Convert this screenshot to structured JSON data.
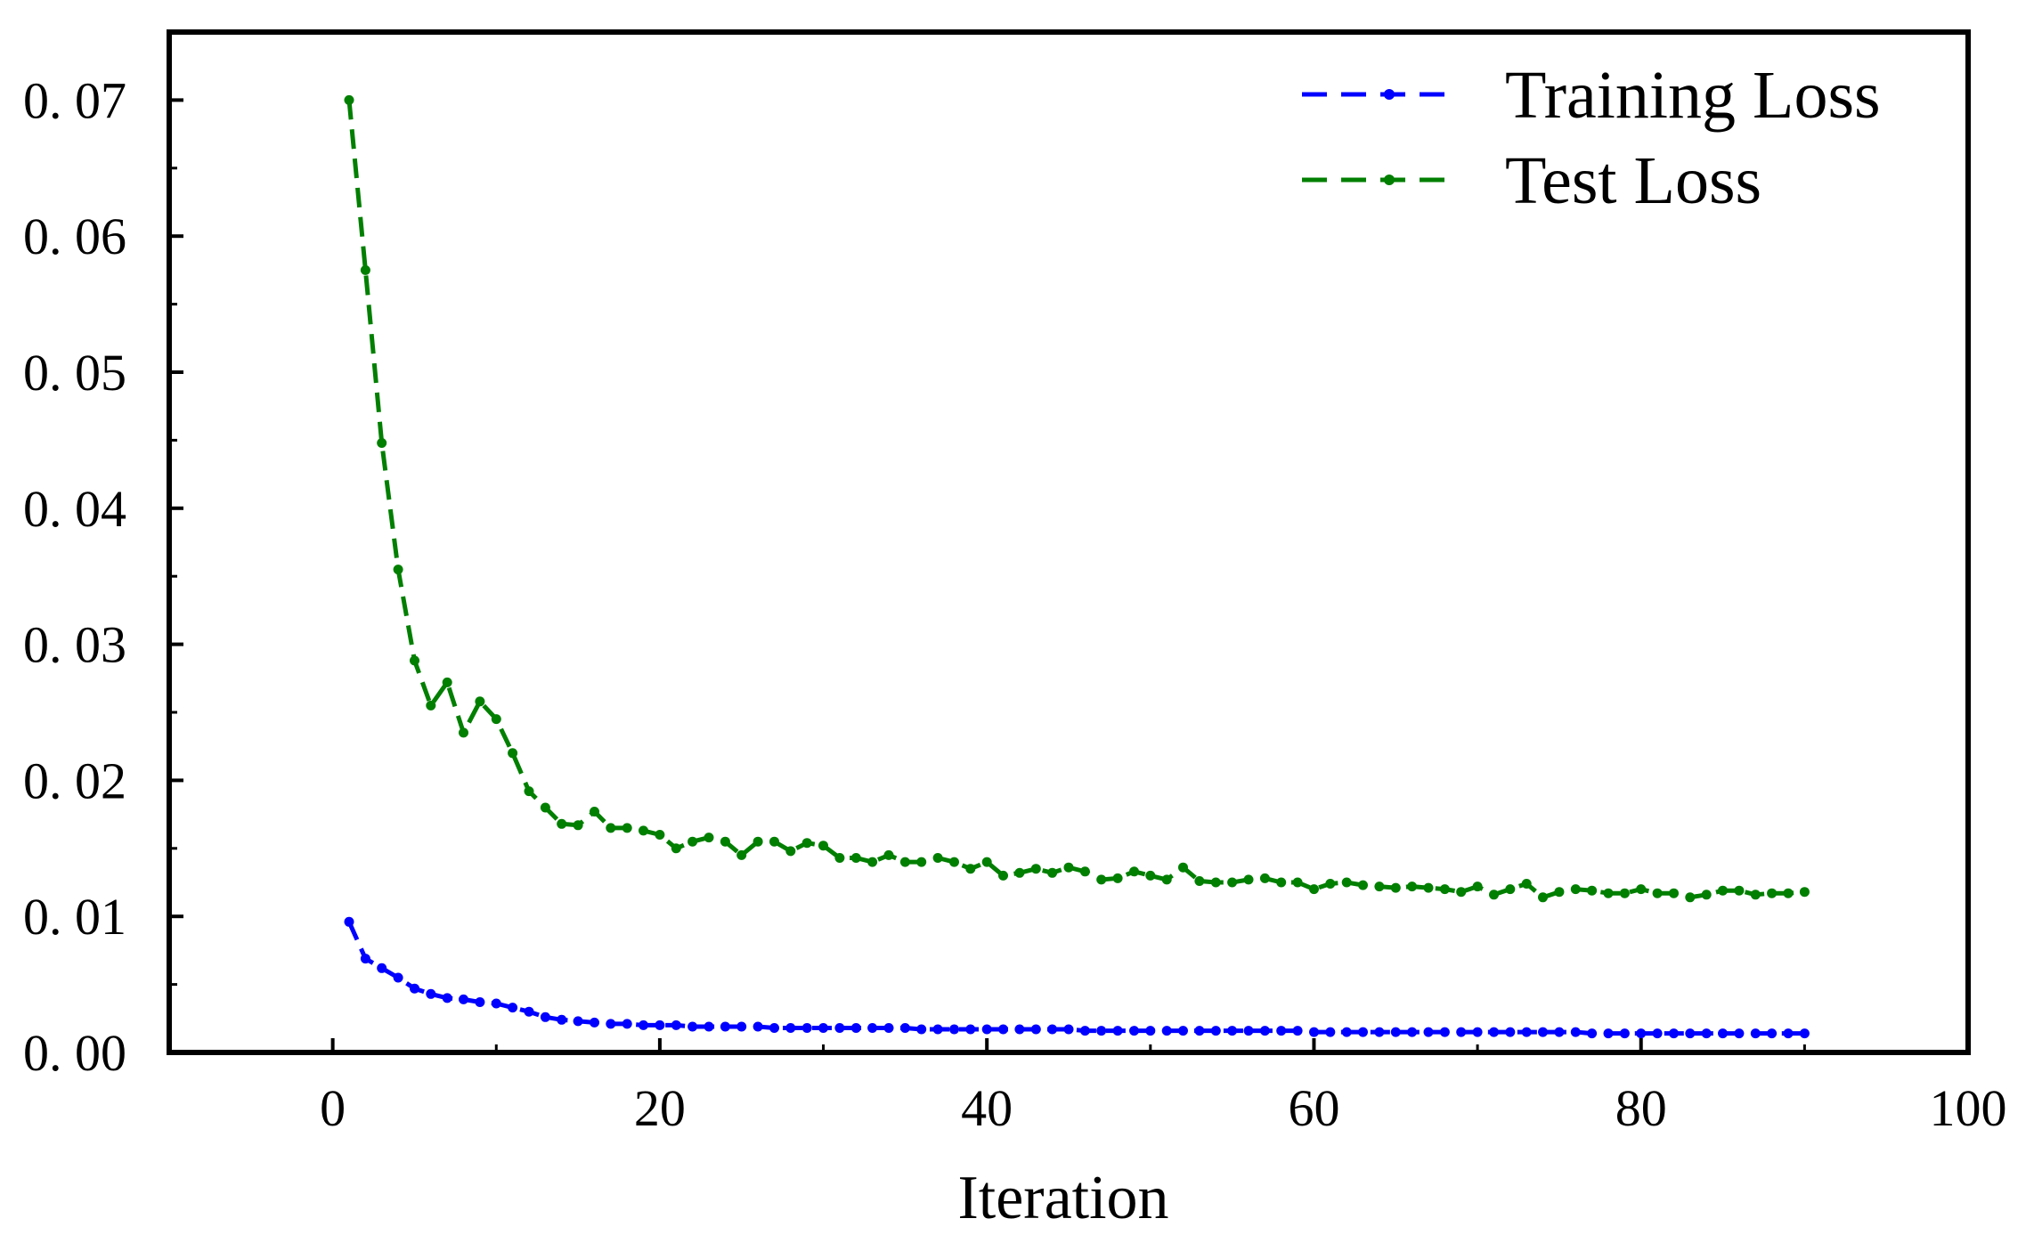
{
  "chart_data": {
    "type": "line",
    "title": "",
    "xlabel": "Iteration",
    "ylabel": "",
    "xlim": [
      -10,
      100
    ],
    "ylim": [
      0,
      0.075
    ],
    "xticks": [
      0,
      20,
      40,
      60,
      80,
      100
    ],
    "xtick_labels": [
      "0",
      "20",
      "40",
      "60",
      "80",
      "100"
    ],
    "yticks": [
      0,
      0.01,
      0.02,
      0.03,
      0.04,
      0.05,
      0.06,
      0.07
    ],
    "ytick_labels": [
      "0. 00",
      "0. 01",
      "0. 02",
      "0. 03",
      "0. 04",
      "0. 05",
      "0. 06",
      "0. 07"
    ],
    "grid": false,
    "legend_position": "top-right",
    "series": [
      {
        "name": "Training Loss",
        "color": "#0000ff",
        "line_style": "dashed",
        "marker": "dot",
        "x": [
          1,
          2,
          3,
          4,
          5,
          6,
          7,
          8,
          9,
          10,
          11,
          12,
          13,
          14,
          15,
          16,
          17,
          18,
          19,
          20,
          21,
          22,
          23,
          24,
          25,
          26,
          27,
          28,
          29,
          30,
          31,
          32,
          33,
          34,
          35,
          36,
          37,
          38,
          39,
          40,
          41,
          42,
          43,
          44,
          45,
          46,
          47,
          48,
          49,
          50,
          51,
          52,
          53,
          54,
          55,
          56,
          57,
          58,
          59,
          60,
          61,
          62,
          63,
          64,
          65,
          66,
          67,
          68,
          69,
          70,
          71,
          72,
          73,
          74,
          75,
          76,
          77,
          78,
          79,
          80,
          81,
          82,
          83,
          84,
          85,
          86,
          87,
          88,
          89,
          90
        ],
        "values": [
          0.0096,
          0.0069,
          0.0062,
          0.0055,
          0.0047,
          0.0043,
          0.004,
          0.0039,
          0.0037,
          0.0036,
          0.0033,
          0.003,
          0.0026,
          0.0024,
          0.0023,
          0.0022,
          0.0021,
          0.0021,
          0.002,
          0.002,
          0.002,
          0.0019,
          0.0019,
          0.0019,
          0.0019,
          0.0019,
          0.0018,
          0.0018,
          0.0018,
          0.0018,
          0.0018,
          0.0018,
          0.0018,
          0.0018,
          0.0018,
          0.0017,
          0.0017,
          0.0017,
          0.0017,
          0.0017,
          0.0017,
          0.0017,
          0.0017,
          0.0017,
          0.0017,
          0.0016,
          0.0016,
          0.0016,
          0.0016,
          0.0016,
          0.0016,
          0.0016,
          0.0016,
          0.0016,
          0.0016,
          0.0016,
          0.0016,
          0.0016,
          0.0016,
          0.0015,
          0.0015,
          0.0015,
          0.0015,
          0.0015,
          0.0015,
          0.0015,
          0.0015,
          0.0015,
          0.0015,
          0.0015,
          0.0015,
          0.0015,
          0.0015,
          0.0015,
          0.0015,
          0.0015,
          0.0014,
          0.0014,
          0.0014,
          0.0014,
          0.0014,
          0.0014,
          0.0014,
          0.0014,
          0.0014,
          0.0014,
          0.0014,
          0.0014,
          0.0014,
          0.0014
        ]
      },
      {
        "name": "Test Loss",
        "color": "#007f00",
        "line_style": "dashed",
        "marker": "dot",
        "x": [
          1,
          2,
          3,
          4,
          5,
          6,
          7,
          8,
          9,
          10,
          11,
          12,
          13,
          14,
          15,
          16,
          17,
          18,
          19,
          20,
          21,
          22,
          23,
          24,
          25,
          26,
          27,
          28,
          29,
          30,
          31,
          32,
          33,
          34,
          35,
          36,
          37,
          38,
          39,
          40,
          41,
          42,
          43,
          44,
          45,
          46,
          47,
          48,
          49,
          50,
          51,
          52,
          53,
          54,
          55,
          56,
          57,
          58,
          59,
          60,
          61,
          62,
          63,
          64,
          65,
          66,
          67,
          68,
          69,
          70,
          71,
          72,
          73,
          74,
          75,
          76,
          77,
          78,
          79,
          80,
          81,
          82,
          83,
          84,
          85,
          86,
          87,
          88,
          89,
          90
        ],
        "values": [
          0.07,
          0.0575,
          0.0448,
          0.0355,
          0.0288,
          0.0255,
          0.0272,
          0.0235,
          0.0258,
          0.0245,
          0.022,
          0.0192,
          0.018,
          0.0168,
          0.0167,
          0.0177,
          0.0165,
          0.0165,
          0.0163,
          0.016,
          0.015,
          0.0155,
          0.0158,
          0.0155,
          0.0145,
          0.0155,
          0.0155,
          0.0148,
          0.0154,
          0.0152,
          0.0143,
          0.0143,
          0.014,
          0.0145,
          0.014,
          0.014,
          0.0143,
          0.014,
          0.0135,
          0.014,
          0.013,
          0.0132,
          0.0135,
          0.0132,
          0.0136,
          0.0133,
          0.0127,
          0.0128,
          0.0133,
          0.013,
          0.0127,
          0.0136,
          0.0126,
          0.0125,
          0.0125,
          0.0127,
          0.0128,
          0.0125,
          0.0125,
          0.012,
          0.0124,
          0.0125,
          0.0123,
          0.0122,
          0.0121,
          0.0122,
          0.0121,
          0.012,
          0.0118,
          0.0122,
          0.0116,
          0.012,
          0.0124,
          0.0114,
          0.0118,
          0.012,
          0.0119,
          0.0117,
          0.0117,
          0.012,
          0.0117,
          0.0117,
          0.0114,
          0.0116,
          0.0119,
          0.0119,
          0.0116,
          0.0117,
          0.0117,
          0.0118
        ]
      }
    ]
  }
}
